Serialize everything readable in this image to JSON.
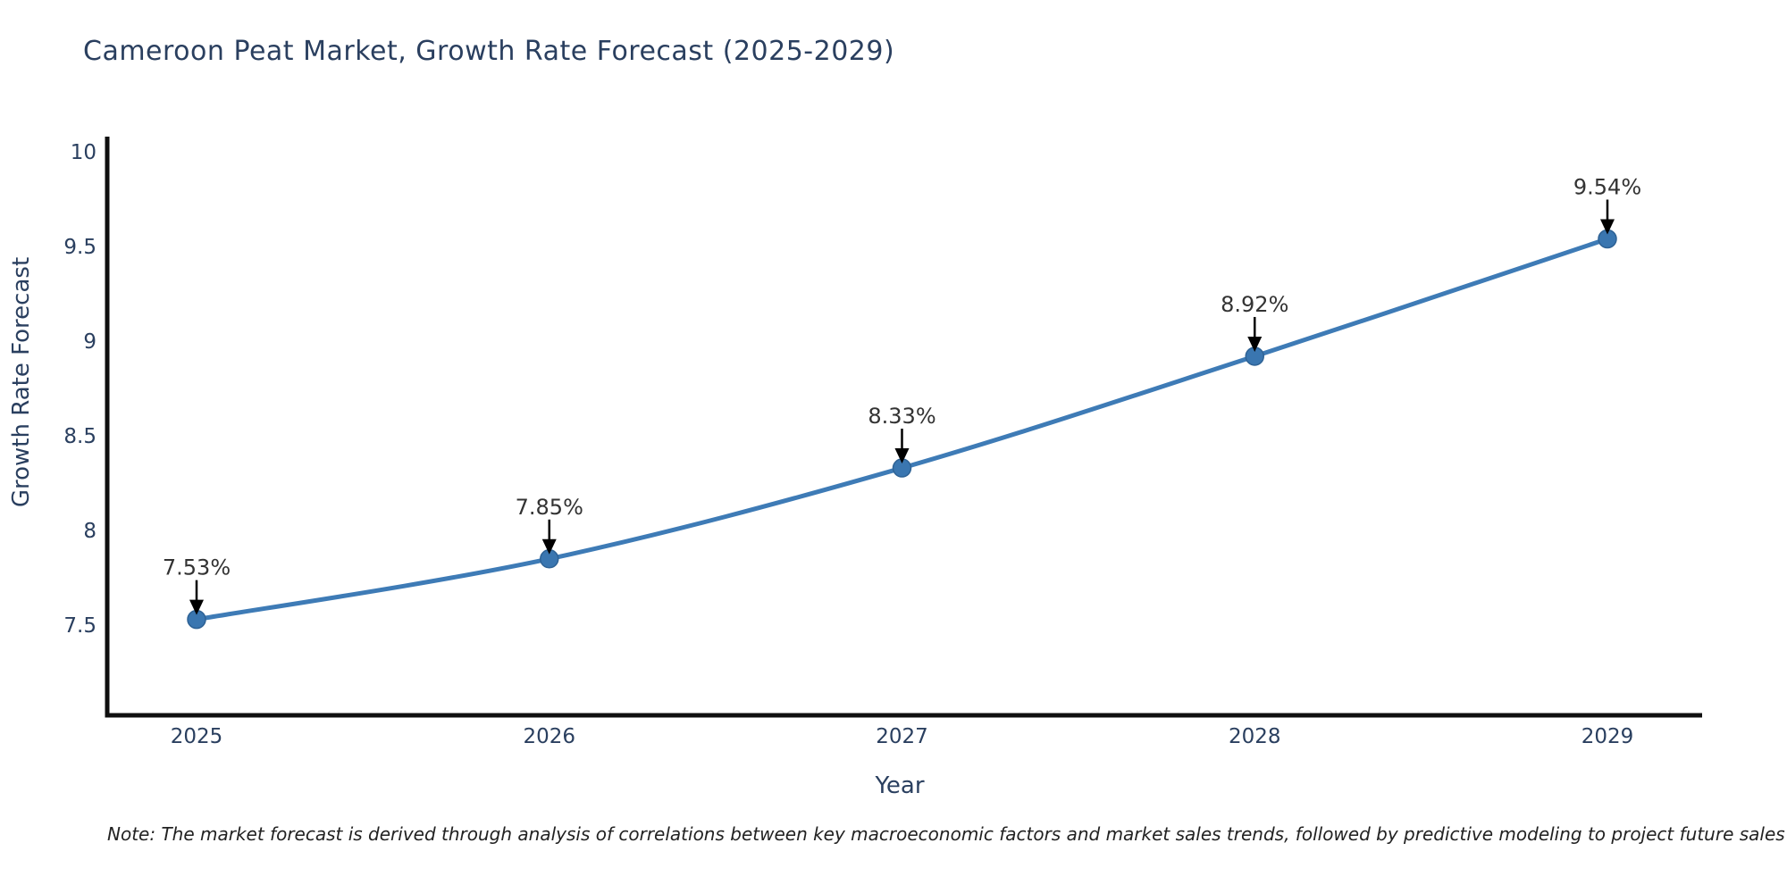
{
  "title": "Cameroon Peat Market, Growth Rate Forecast (2025-2029)",
  "note": "Note: The market forecast is derived through analysis of correlations between key macroeconomic factors and market sales trends, followed by predictive modeling to project future sales",
  "chart_data": {
    "type": "line",
    "title": "Cameroon Peat Market, Growth Rate Forecast (2025-2029)",
    "xlabel": "Year",
    "ylabel": "Growth Rate Forecast",
    "categories": [
      "2025",
      "2026",
      "2027",
      "2028",
      "2029"
    ],
    "values": [
      7.53,
      7.85,
      8.33,
      8.92,
      9.54
    ],
    "point_labels": [
      "7.53%",
      "7.85%",
      "8.33%",
      "8.92%",
      "9.54%"
    ],
    "yticks": [
      7.5,
      8,
      8.5,
      9,
      9.5,
      10
    ],
    "ytick_labels": [
      "7.5",
      "8",
      "8.5",
      "9",
      "9.5",
      "10"
    ],
    "ylim": [
      7.0,
      10.1
    ],
    "grid": false,
    "legend": "none",
    "line_shape": "spline",
    "colors": {
      "line": "#3e7bb6",
      "marker": "#3a76b0",
      "marker_edge": "#2e6295",
      "axis_line": "#0f0f0f",
      "axis_text": "#2a3f5f",
      "annotation_text": "#333333",
      "annotation_arrow": "#000000",
      "title_text": "#2a3f5f",
      "background": "#ffffff"
    }
  }
}
